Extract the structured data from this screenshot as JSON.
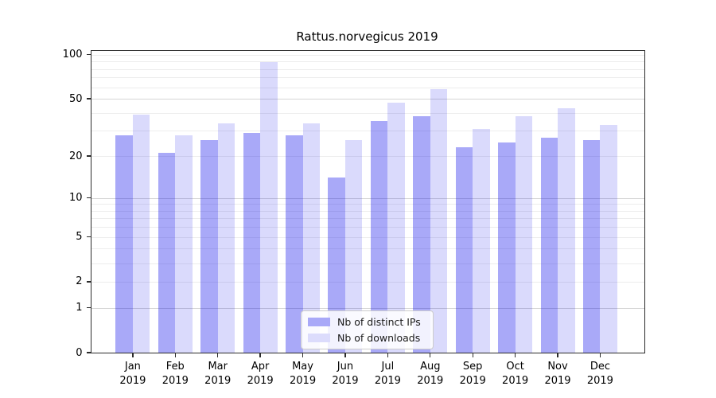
{
  "figure": {
    "background": "#ffffff",
    "spine_color": "#2b2b2b",
    "gridline_minor_color": "#ededed",
    "gridline_major_color": "#d5d5d5"
  },
  "chart_data": {
    "type": "bar",
    "title": "Rattus.norvegicus 2019",
    "xlabel": "",
    "ylabel": "",
    "y_scale": "symlog (position ~ log(1+value))",
    "ylim": [
      0,
      108
    ],
    "y_ticks": [
      100,
      50,
      20,
      10,
      5,
      2,
      1,
      0
    ],
    "gridlines": {
      "major": [
        50,
        10,
        1
      ],
      "minor": [
        100,
        90,
        80,
        70,
        60,
        40,
        30,
        20,
        9,
        8,
        7,
        6,
        5,
        4,
        3,
        2
      ]
    },
    "grid_on": true,
    "legend_position": "inside-bottom-center",
    "categories": [
      {
        "month": "Jan",
        "year": "2019"
      },
      {
        "month": "Feb",
        "year": "2019"
      },
      {
        "month": "Mar",
        "year": "2019"
      },
      {
        "month": "Apr",
        "year": "2019"
      },
      {
        "month": "May",
        "year": "2019"
      },
      {
        "month": "Jun",
        "year": "2019"
      },
      {
        "month": "Jul",
        "year": "2019"
      },
      {
        "month": "Aug",
        "year": "2019"
      },
      {
        "month": "Sep",
        "year": "2019"
      },
      {
        "month": "Oct",
        "year": "2019"
      },
      {
        "month": "Nov",
        "year": "2019"
      },
      {
        "month": "Dec",
        "year": "2019"
      }
    ],
    "series": [
      {
        "name": "Nb of distinct IPs",
        "fill": "rgba(10,10,235,0.35)",
        "legend_color": "#a9a9f8",
        "values": [
          28,
          21,
          26,
          29,
          28,
          14,
          35,
          38,
          23,
          25,
          27,
          26
        ]
      },
      {
        "name": "Nb of downloads",
        "fill": "rgba(10,10,235,0.15)",
        "legend_color": "#dcdcfc",
        "values": [
          39,
          28,
          34,
          89,
          34,
          26,
          47,
          58,
          31,
          38,
          43,
          33
        ]
      }
    ]
  }
}
